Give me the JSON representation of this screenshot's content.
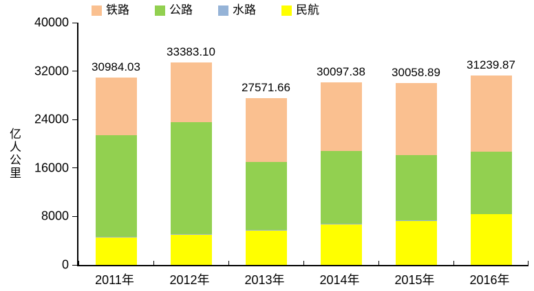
{
  "chart_data": {
    "type": "bar",
    "stacked": true,
    "title": "",
    "ylabel": "亿人公里",
    "xlabel": "",
    "categories": [
      "2011年",
      "2012年",
      "2013年",
      "2014年",
      "2015年",
      "2016年"
    ],
    "series": [
      {
        "key": "civil-aviation",
        "name": "民航",
        "color": "#FFFF00",
        "values": [
          4536.96,
          5025.74,
          5656.77,
          6697.09,
          7282.55,
          8359.54
        ]
      },
      {
        "key": "waterway",
        "name": "水路",
        "color": "#95B3D7",
        "values": [
          74.53,
          77.48,
          68.33,
          74.34,
          73.08,
          72.33
        ]
      },
      {
        "key": "highway",
        "name": "公路",
        "color": "#92D050",
        "values": [
          16760.25,
          18467.55,
          11250.94,
          12084.1,
          10742.66,
          10228.71
        ]
      },
      {
        "key": "railway",
        "name": "铁路",
        "color": "#FAC090",
        "values": [
          9612.29,
          9812.33,
          10595.62,
          11241.85,
          11960.6,
          12579.29
        ]
      }
    ],
    "totals_labels": [
      "30984.03",
      "33383.10",
      "27571.66",
      "30097.38",
      "30058.89",
      "31239.87"
    ],
    "legend": [
      {
        "key": "railway",
        "label": "铁路",
        "color": "#FAC090"
      },
      {
        "key": "highway",
        "label": "公路",
        "color": "#92D050"
      },
      {
        "key": "waterway",
        "label": "水路",
        "color": "#95B3D7"
      },
      {
        "key": "civil-aviation",
        "label": "民航",
        "color": "#FFFF00"
      }
    ],
    "legend_position": "top",
    "ylim": [
      0,
      40000
    ],
    "ytick_step": 8000,
    "yticks": [
      "0",
      "8000",
      "16000",
      "24000",
      "32000",
      "40000"
    ],
    "grid": false,
    "axis_color": "#000000",
    "background": "#FFFFFF"
  }
}
